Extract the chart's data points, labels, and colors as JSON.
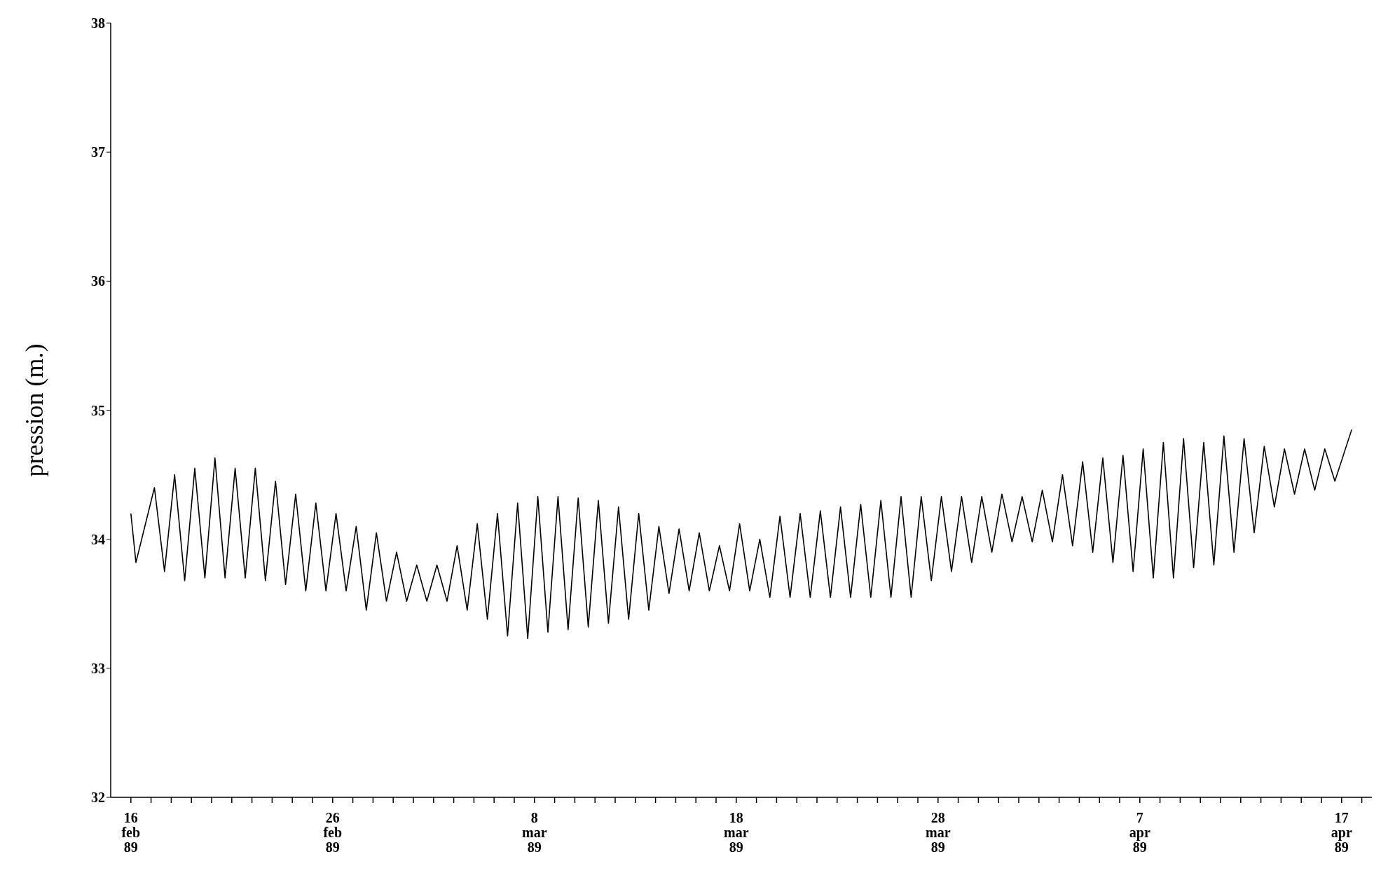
{
  "chart_data": {
    "type": "line",
    "ylabel": "pression (m.)",
    "x": [
      "1989-02-16T00:00",
      "1989-02-16T06:00",
      "1989-02-17T04:00",
      "1989-02-17T16:00",
      "1989-02-18T04:00",
      "1989-02-18T16:00",
      "1989-02-19T04:00",
      "1989-02-19T16:00",
      "1989-02-20T04:00",
      "1989-02-20T16:00",
      "1989-02-21T04:00",
      "1989-02-21T16:00",
      "1989-02-22T04:00",
      "1989-02-22T16:00",
      "1989-02-23T04:00",
      "1989-02-23T16:00",
      "1989-02-24T04:00",
      "1989-02-24T16:00",
      "1989-02-25T04:00",
      "1989-02-25T16:00",
      "1989-02-26T04:00",
      "1989-02-26T16:00",
      "1989-02-27T04:00",
      "1989-02-27T16:00",
      "1989-02-28T04:00",
      "1989-02-28T16:00",
      "1989-03-01T04:00",
      "1989-03-01T16:00",
      "1989-03-02T04:00",
      "1989-03-02T16:00",
      "1989-03-03T04:00",
      "1989-03-03T16:00",
      "1989-03-04T04:00",
      "1989-03-04T16:00",
      "1989-03-05T04:00",
      "1989-03-05T16:00",
      "1989-03-06T04:00",
      "1989-03-06T16:00",
      "1989-03-07T04:00",
      "1989-03-07T16:00",
      "1989-03-08T04:00",
      "1989-03-08T16:00",
      "1989-03-09T04:00",
      "1989-03-09T16:00",
      "1989-03-10T04:00",
      "1989-03-10T16:00",
      "1989-03-11T04:00",
      "1989-03-11T16:00",
      "1989-03-12T04:00",
      "1989-03-12T16:00",
      "1989-03-13T04:00",
      "1989-03-13T16:00",
      "1989-03-14T04:00",
      "1989-03-14T16:00",
      "1989-03-15T04:00",
      "1989-03-15T16:00",
      "1989-03-16T04:00",
      "1989-03-16T16:00",
      "1989-03-17T04:00",
      "1989-03-17T16:00",
      "1989-03-18T04:00",
      "1989-03-18T16:00",
      "1989-03-19T04:00",
      "1989-03-19T16:00",
      "1989-03-20T04:00",
      "1989-03-20T16:00",
      "1989-03-21T04:00",
      "1989-03-21T16:00",
      "1989-03-22T04:00",
      "1989-03-22T16:00",
      "1989-03-23T04:00",
      "1989-03-23T16:00",
      "1989-03-24T04:00",
      "1989-03-24T16:00",
      "1989-03-25T04:00",
      "1989-03-25T16:00",
      "1989-03-26T04:00",
      "1989-03-26T16:00",
      "1989-03-27T04:00",
      "1989-03-27T16:00",
      "1989-03-28T04:00",
      "1989-03-28T16:00",
      "1989-03-29T04:00",
      "1989-03-29T16:00",
      "1989-03-30T04:00",
      "1989-03-30T16:00",
      "1989-03-31T04:00",
      "1989-03-31T16:00",
      "1989-04-01T04:00",
      "1989-04-01T16:00",
      "1989-04-02T04:00",
      "1989-04-02T16:00",
      "1989-04-03T04:00",
      "1989-04-03T16:00",
      "1989-04-04T04:00",
      "1989-04-04T16:00",
      "1989-04-05T04:00",
      "1989-04-05T16:00",
      "1989-04-06T04:00",
      "1989-04-06T16:00",
      "1989-04-07T04:00",
      "1989-04-07T16:00",
      "1989-04-08T04:00",
      "1989-04-08T16:00",
      "1989-04-09T04:00",
      "1989-04-09T16:00",
      "1989-04-10T04:00",
      "1989-04-10T16:00",
      "1989-04-11T04:00",
      "1989-04-11T16:00",
      "1989-04-12T04:00",
      "1989-04-12T16:00",
      "1989-04-13T04:00",
      "1989-04-13T16:00",
      "1989-04-14T04:00",
      "1989-04-14T16:00",
      "1989-04-15T04:00",
      "1989-04-15T16:00",
      "1989-04-16T04:00",
      "1989-04-16T16:00",
      "1989-04-17T12:00"
    ],
    "series": [
      {
        "color": "#000000",
        "values": [
          34.2,
          33.82,
          34.4,
          33.75,
          34.5,
          33.68,
          34.55,
          33.7,
          34.63,
          33.7,
          34.55,
          33.7,
          34.55,
          33.68,
          34.45,
          33.65,
          34.35,
          33.6,
          34.28,
          33.6,
          34.2,
          33.6,
          34.1,
          33.45,
          34.05,
          33.52,
          33.9,
          33.52,
          33.8,
          33.52,
          33.8,
          33.52,
          33.95,
          33.45,
          34.12,
          33.38,
          34.2,
          33.25,
          34.28,
          33.23,
          34.33,
          33.28,
          34.33,
          33.3,
          34.32,
          33.32,
          34.3,
          33.35,
          34.25,
          33.38,
          34.2,
          33.45,
          34.1,
          33.58,
          34.08,
          33.6,
          34.05,
          33.6,
          33.95,
          33.6,
          34.12,
          33.6,
          34.0,
          33.55,
          34.18,
          33.55,
          34.2,
          33.55,
          34.22,
          33.55,
          34.25,
          33.55,
          34.27,
          33.55,
          34.3,
          33.55,
          34.33,
          33.55,
          34.33,
          33.68,
          34.33,
          33.75,
          34.33,
          33.82,
          34.33,
          33.9,
          34.35,
          33.98,
          34.33,
          33.98,
          34.38,
          33.98,
          34.5,
          33.95,
          34.6,
          33.9,
          34.63,
          33.82,
          34.65,
          33.75,
          34.7,
          33.7,
          34.75,
          33.7,
          34.78,
          33.78,
          34.75,
          33.8,
          34.8,
          33.9,
          34.78,
          34.05,
          34.72,
          34.25,
          34.7,
          34.35,
          34.7,
          34.38,
          34.7,
          34.45,
          34.85
        ]
      }
    ],
    "xlim": [
      "1989-02-15",
      "1989-04-18T12:00"
    ],
    "xticks": [
      {
        "value": "1989-02-16",
        "label": "16 feb 89"
      },
      {
        "value": "1989-02-17",
        "label": null
      },
      {
        "value": "1989-02-18",
        "label": null
      },
      {
        "value": "1989-02-19",
        "label": null
      },
      {
        "value": "1989-02-20",
        "label": null
      },
      {
        "value": "1989-02-21",
        "label": null
      },
      {
        "value": "1989-02-22",
        "label": null
      },
      {
        "value": "1989-02-23",
        "label": null
      },
      {
        "value": "1989-02-24",
        "label": null
      },
      {
        "value": "1989-02-25",
        "label": null
      },
      {
        "value": "1989-02-26",
        "label": "26 feb 89"
      },
      {
        "value": "1989-02-27",
        "label": null
      },
      {
        "value": "1989-02-28",
        "label": null
      },
      {
        "value": "1989-03-01",
        "label": null
      },
      {
        "value": "1989-03-02",
        "label": null
      },
      {
        "value": "1989-03-03",
        "label": null
      },
      {
        "value": "1989-03-04",
        "label": null
      },
      {
        "value": "1989-03-05",
        "label": null
      },
      {
        "value": "1989-03-06",
        "label": null
      },
      {
        "value": "1989-03-07",
        "label": null
      },
      {
        "value": "1989-03-08",
        "label": "8 mar 89"
      },
      {
        "value": "1989-03-09",
        "label": null
      },
      {
        "value": "1989-03-10",
        "label": null
      },
      {
        "value": "1989-03-11",
        "label": null
      },
      {
        "value": "1989-03-12",
        "label": null
      },
      {
        "value": "1989-03-13",
        "label": null
      },
      {
        "value": "1989-03-14",
        "label": null
      },
      {
        "value": "1989-03-15",
        "label": null
      },
      {
        "value": "1989-03-16",
        "label": null
      },
      {
        "value": "1989-03-17",
        "label": null
      },
      {
        "value": "1989-03-18",
        "label": "18 mar 89"
      },
      {
        "value": "1989-03-19",
        "label": null
      },
      {
        "value": "1989-03-20",
        "label": null
      },
      {
        "value": "1989-03-21",
        "label": null
      },
      {
        "value": "1989-03-22",
        "label": null
      },
      {
        "value": "1989-03-23",
        "label": null
      },
      {
        "value": "1989-03-24",
        "label": null
      },
      {
        "value": "1989-03-25",
        "label": null
      },
      {
        "value": "1989-03-26",
        "label": null
      },
      {
        "value": "1989-03-27",
        "label": null
      },
      {
        "value": "1989-03-28",
        "label": "28 mar 89"
      },
      {
        "value": "1989-03-29",
        "label": null
      },
      {
        "value": "1989-03-30",
        "label": null
      },
      {
        "value": "1989-03-31",
        "label": null
      },
      {
        "value": "1989-04-01",
        "label": null
      },
      {
        "value": "1989-04-02",
        "label": null
      },
      {
        "value": "1989-04-03",
        "label": null
      },
      {
        "value": "1989-04-04",
        "label": null
      },
      {
        "value": "1989-04-05",
        "label": null
      },
      {
        "value": "1989-04-06",
        "label": null
      },
      {
        "value": "1989-04-07",
        "label": "7 apr 89"
      },
      {
        "value": "1989-04-08",
        "label": null
      },
      {
        "value": "1989-04-09",
        "label": null
      },
      {
        "value": "1989-04-10",
        "label": null
      },
      {
        "value": "1989-04-11",
        "label": null
      },
      {
        "value": "1989-04-12",
        "label": null
      },
      {
        "value": "1989-04-13",
        "label": null
      },
      {
        "value": "1989-04-14",
        "label": null
      },
      {
        "value": "1989-04-15",
        "label": null
      },
      {
        "value": "1989-04-16",
        "label": null
      },
      {
        "value": "1989-04-17",
        "label": "17 apr 89"
      },
      {
        "value": "1989-04-18",
        "label": null
      }
    ],
    "ylim": [
      32,
      38
    ],
    "yticks": [
      32,
      33,
      34,
      35,
      36,
      37,
      38
    ],
    "grid": false,
    "legend": false,
    "marker": "none",
    "line_style": "solid"
  }
}
